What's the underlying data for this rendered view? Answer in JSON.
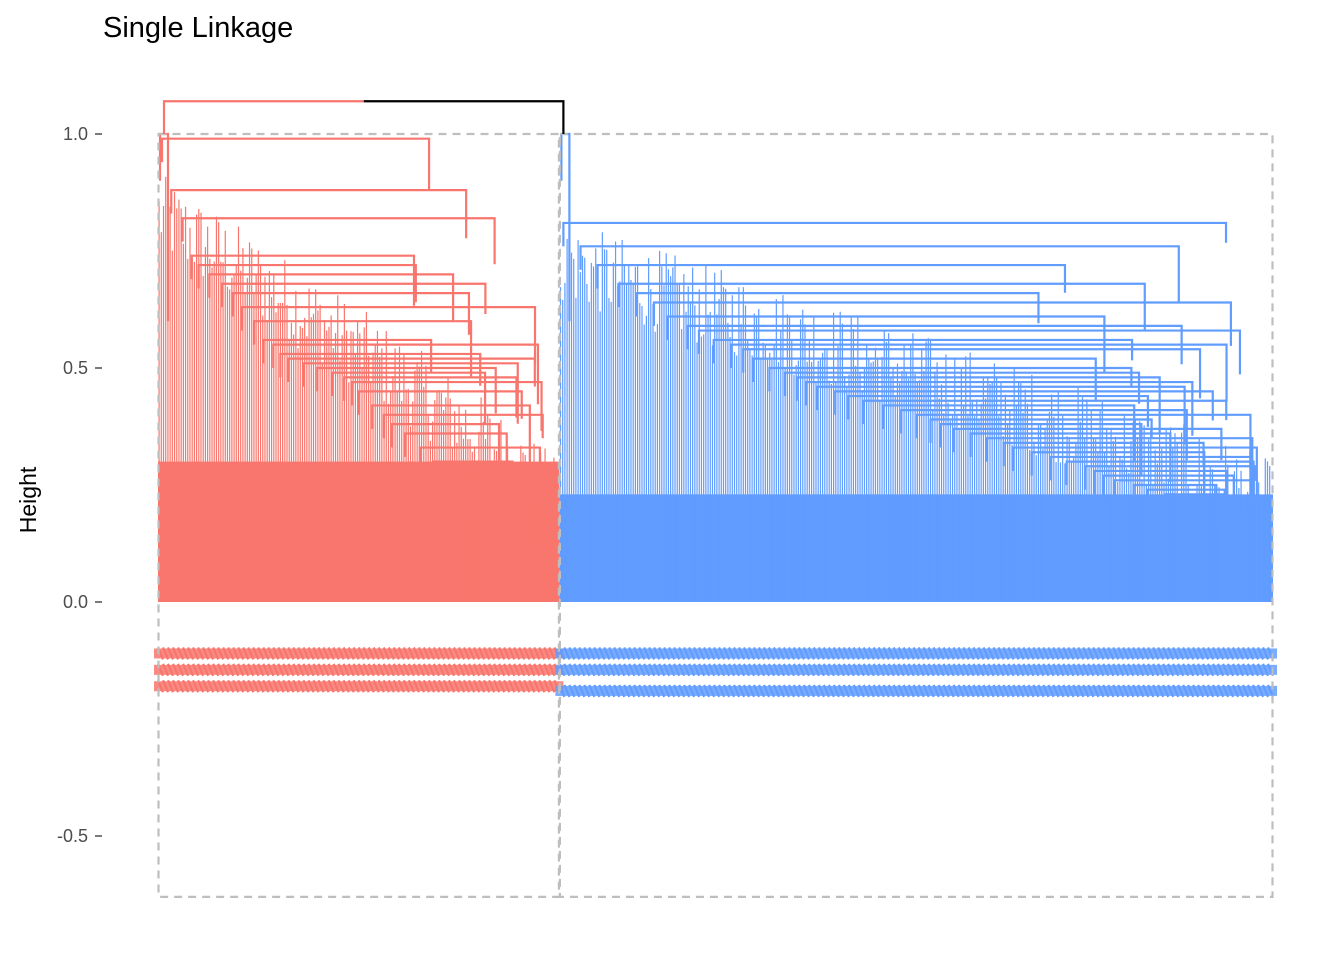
{
  "chart_data": {
    "type": "dendrogram",
    "title": "Single Linkage",
    "xlabel": "",
    "ylabel": "Height",
    "ylim": [
      -0.6,
      1.07
    ],
    "yticks": [
      {
        "value": 1.0,
        "label": "1.0"
      },
      {
        "value": 0.5,
        "label": "0.5"
      },
      {
        "value": 0.0,
        "label": "0.0"
      },
      {
        "value": -0.5,
        "label": "-0.5"
      }
    ],
    "grid": false,
    "root_height": 1.07,
    "clusters": [
      {
        "color": "#F8766D",
        "label_color": "#F8766D",
        "approx_leaf_share": 0.36,
        "merge_height": 1.0,
        "label_rows": [
          -0.11,
          -0.145,
          -0.18
        ],
        "nested_heights": [
          0.99,
          0.88,
          0.82,
          0.74,
          0.72,
          0.7,
          0.68,
          0.66,
          0.63,
          0.6,
          0.56,
          0.55,
          0.53,
          0.52,
          0.51,
          0.5,
          0.49,
          0.48,
          0.47,
          0.45,
          0.42,
          0.4,
          0.38,
          0.36,
          0.33,
          0.3,
          0.28,
          0.26,
          0.24,
          0.22
        ]
      },
      {
        "color": "#619CFF",
        "label_color": "#619CFF",
        "approx_leaf_share": 0.64,
        "merge_height": 1.0,
        "label_rows": [
          -0.11,
          -0.145,
          -0.19
        ],
        "nested_heights": [
          0.81,
          0.76,
          0.72,
          0.68,
          0.66,
          0.64,
          0.61,
          0.59,
          0.58,
          0.56,
          0.55,
          0.54,
          0.52,
          0.5,
          0.49,
          0.48,
          0.47,
          0.46,
          0.45,
          0.44,
          0.43,
          0.42,
          0.41,
          0.4,
          0.39,
          0.38,
          0.37,
          0.36,
          0.35,
          0.34,
          0.33,
          0.32,
          0.31,
          0.3,
          0.29,
          0.28,
          0.27,
          0.26,
          0.25,
          0.24,
          0.23
        ]
      }
    ],
    "cluster_boxes": {
      "line_color": "#BEBEBE",
      "style": "dashed",
      "top": 1.0,
      "bottom": -0.63
    },
    "root_color": "#000000"
  }
}
